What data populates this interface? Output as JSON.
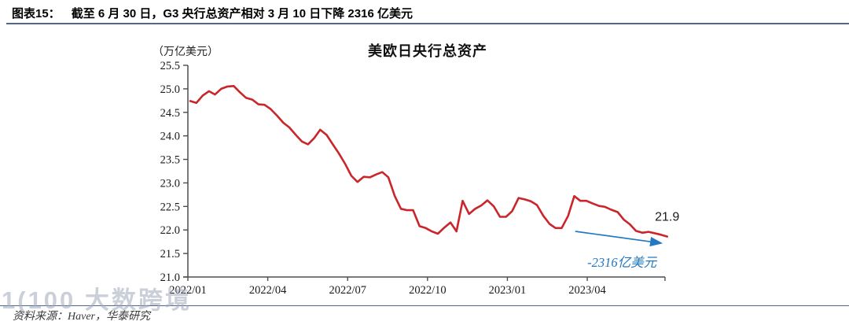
{
  "header": {
    "figure_label": "图表15：",
    "title": "截至 6 月 30 日，G3 央行总资产相对 3 月 10 日下降 2316 亿美元"
  },
  "footer": {
    "source": "资料来源：Haver，华泰研究"
  },
  "watermark": {
    "text": "1(100 大数跨境"
  },
  "chart_data": {
    "type": "line",
    "title": "美欧日央行总资产",
    "unit_label": "（万亿美元）",
    "ylabel": "万亿美元",
    "ylim": [
      21.0,
      25.5
    ],
    "yticks": [
      21.0,
      21.5,
      22.0,
      22.5,
      23.0,
      23.5,
      24.0,
      24.5,
      25.0,
      25.5
    ],
    "xlim_months": [
      0,
      17.92
    ],
    "xticks": [
      {
        "month": 0,
        "label": "2022/01"
      },
      {
        "month": 3,
        "label": "2022/04"
      },
      {
        "month": 6,
        "label": "2022/07"
      },
      {
        "month": 9,
        "label": "2022/10"
      },
      {
        "month": 12,
        "label": "2023/01"
      },
      {
        "month": 15,
        "label": "2023/04"
      }
    ],
    "grid": false,
    "legend": "none",
    "series": [
      {
        "name": "美欧日央行总资产",
        "color": "#c9252b",
        "x_months": [
          0.09,
          0.32,
          0.56,
          0.79,
          1.02,
          1.25,
          1.49,
          1.72,
          1.95,
          2.18,
          2.42,
          2.65,
          2.88,
          3.11,
          3.35,
          3.58,
          3.81,
          4.04,
          4.28,
          4.51,
          4.74,
          4.97,
          5.21,
          5.44,
          5.67,
          5.91,
          6.14,
          6.37,
          6.6,
          6.84,
          7.07,
          7.3,
          7.53,
          7.77,
          8.0,
          8.23,
          8.46,
          8.7,
          8.93,
          9.16,
          9.39,
          9.63,
          9.86,
          10.09,
          10.32,
          10.56,
          10.79,
          11.02,
          11.25,
          11.49,
          11.72,
          11.95,
          12.18,
          12.42,
          12.65,
          12.88,
          13.11,
          13.35,
          13.58,
          13.81,
          14.04,
          14.28,
          14.51,
          14.74,
          14.97,
          15.21,
          15.44,
          15.67,
          15.9,
          16.14,
          16.37,
          16.6,
          16.83,
          17.07,
          17.3,
          17.53,
          17.76,
          18.0
        ],
        "values": [
          24.74,
          24.7,
          24.86,
          24.95,
          24.88,
          25.0,
          25.05,
          25.06,
          24.93,
          24.81,
          24.77,
          24.67,
          24.66,
          24.57,
          24.43,
          24.28,
          24.18,
          24.03,
          23.88,
          23.82,
          23.95,
          24.13,
          24.02,
          23.82,
          23.63,
          23.4,
          23.15,
          23.02,
          23.13,
          23.12,
          23.18,
          23.23,
          23.12,
          22.72,
          22.45,
          22.42,
          22.42,
          22.08,
          22.04,
          21.97,
          21.92,
          22.05,
          22.16,
          21.97,
          22.62,
          22.34,
          22.45,
          22.52,
          22.63,
          22.5,
          22.28,
          22.28,
          22.4,
          22.68,
          22.65,
          22.61,
          22.53,
          22.3,
          22.13,
          22.04,
          22.04,
          22.3,
          22.72,
          22.62,
          22.62,
          22.56,
          22.51,
          22.49,
          22.43,
          22.38,
          22.22,
          22.12,
          21.98,
          21.94,
          21.96,
          21.93,
          21.9,
          21.86
        ]
      }
    ],
    "annotations": {
      "end_value": {
        "text": "21.9",
        "month": 18.0,
        "value": 22.3
      },
      "change_label": {
        "text": "-2316亿美元",
        "month": 16.3,
        "value": 21.32,
        "color": "#2379c2"
      },
      "arrow": {
        "color": "#2379c2",
        "from": {
          "month": 14.55,
          "value": 21.97
        },
        "to": {
          "month": 18.0,
          "value": 21.72
        }
      }
    }
  }
}
